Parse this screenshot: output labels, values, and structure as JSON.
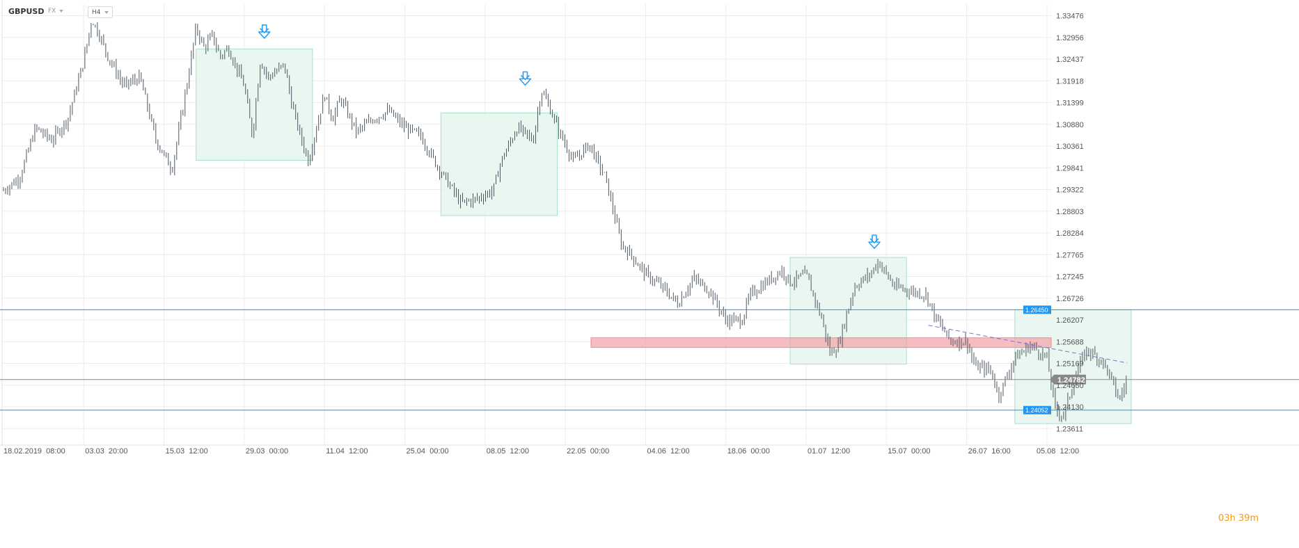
{
  "toolbar": {
    "symbol": "GBPUSD",
    "market": "FX",
    "timeframe": "H4"
  },
  "countdown": "03h 39m",
  "chart_data": {
    "type": "bar",
    "instrument": "GBPUSD",
    "timeframe": "H4",
    "ylim": [
      1.2335,
      1.3375
    ],
    "y_ticks": [
      "1.33476",
      "1.32956",
      "1.32437",
      "1.31918",
      "1.31399",
      "1.30880",
      "1.30361",
      "1.29841",
      "1.29322",
      "1.28803",
      "1.28284",
      "1.27765",
      "1.27245",
      "1.26726",
      "1.26207",
      "1.25688",
      "1.25169",
      "1.24650",
      "1.24130",
      "1.23611"
    ],
    "x_ticks": [
      "18.02.2019  08:00",
      "03.03  20:00",
      "15.03  12:00",
      "29.03  00:00",
      "11.04  12:00",
      "25.04  00:00",
      "08.05  12:00",
      "22.05  00:00",
      "04.06  12:00",
      "18.06  00:00",
      "01.07  12:00",
      "15.07  00:00",
      "26.07  16:00",
      "05.08  12:00"
    ],
    "price_path": [
      [
        0,
        1.293
      ],
      [
        2,
        1.296
      ],
      [
        4,
        1.308
      ],
      [
        6,
        1.305
      ],
      [
        8,
        1.31
      ],
      [
        10,
        1.324
      ],
      [
        11,
        1.334
      ],
      [
        12,
        1.33
      ],
      [
        13,
        1.325
      ],
      [
        15,
        1.318
      ],
      [
        17,
        1.32
      ],
      [
        19,
        1.305
      ],
      [
        21,
        1.298
      ],
      [
        23,
        1.32
      ],
      [
        24,
        1.332
      ],
      [
        25,
        1.327
      ],
      [
        26,
        1.33
      ],
      [
        27,
        1.325
      ],
      [
        28,
        1.327
      ],
      [
        30,
        1.318
      ],
      [
        31,
        1.306
      ],
      [
        32,
        1.324
      ],
      [
        33,
        1.32
      ],
      [
        35,
        1.323
      ],
      [
        36,
        1.313
      ],
      [
        37,
        1.306
      ],
      [
        38,
        1.3
      ],
      [
        40,
        1.316
      ],
      [
        41,
        1.31
      ],
      [
        42,
        1.315
      ],
      [
        44,
        1.307
      ],
      [
        46,
        1.31
      ],
      [
        48,
        1.312
      ],
      [
        50,
        1.308
      ],
      [
        52,
        1.306
      ],
      [
        54,
        1.299
      ],
      [
        55,
        1.296
      ],
      [
        57,
        1.29
      ],
      [
        59,
        1.291
      ],
      [
        61,
        1.293
      ],
      [
        62,
        1.3
      ],
      [
        64,
        1.308
      ],
      [
        66,
        1.305
      ],
      [
        67,
        1.317
      ],
      [
        68,
        1.313
      ],
      [
        69,
        1.308
      ],
      [
        71,
        1.3
      ],
      [
        73,
        1.304
      ],
      [
        75,
        1.296
      ],
      [
        76,
        1.288
      ],
      [
        77,
        1.28
      ],
      [
        78,
        1.278
      ],
      [
        80,
        1.273
      ],
      [
        82,
        1.27
      ],
      [
        84,
        1.266
      ],
      [
        86,
        1.272
      ],
      [
        88,
        1.269
      ],
      [
        90,
        1.262
      ],
      [
        92,
        1.262
      ],
      [
        93,
        1.268
      ],
      [
        95,
        1.271
      ],
      [
        97,
        1.274
      ],
      [
        98,
        1.271
      ],
      [
        100,
        1.273
      ],
      [
        102,
        1.262
      ],
      [
        103,
        1.254
      ],
      [
        104,
        1.256
      ],
      [
        106,
        1.27
      ],
      [
        108,
        1.273
      ],
      [
        109,
        1.276
      ],
      [
        111,
        1.27
      ],
      [
        113,
        1.269
      ],
      [
        115,
        1.268
      ],
      [
        116,
        1.263
      ],
      [
        118,
        1.257
      ],
      [
        120,
        1.257
      ],
      [
        121,
        1.251
      ],
      [
        123,
        1.25
      ],
      [
        124,
        1.244
      ],
      [
        126,
        1.253
      ],
      [
        128,
        1.256
      ],
      [
        130,
        1.253
      ],
      [
        131,
        1.241
      ],
      [
        132,
        1.239
      ],
      [
        134,
        1.251
      ],
      [
        135,
        1.255
      ],
      [
        137,
        1.252
      ],
      [
        138,
        1.248
      ],
      [
        139,
        1.243
      ],
      [
        140,
        1.2478
      ]
    ],
    "levels": [
      {
        "label": "1.26450",
        "price": 1.2645,
        "color": "#2196f3"
      },
      {
        "label": "1.24052",
        "price": 1.24052,
        "color": "#2196f3"
      },
      {
        "label": "1.24782",
        "price": 1.24782,
        "color": "#888888"
      }
    ],
    "zone": {
      "price_low": 1.2555,
      "price_high": 1.2578,
      "color": "#f4a3a8"
    },
    "trendline": {
      "from": [
        120,
        1.2588
      ],
      "to": [
        140,
        1.2518
      ],
      "color": "#7b6fd6"
    },
    "boxes": [
      {
        "x0": 24,
        "x1": 38.5,
        "y_low": 1.3002,
        "y_high": 1.3268
      },
      {
        "x0": 54.5,
        "x1": 69,
        "y_low": 1.287,
        "y_high": 1.3115
      },
      {
        "x0": 98,
        "x1": 112.5,
        "y_low": 1.2515,
        "y_high": 1.277
      },
      {
        "x0": 126,
        "x1": 140.5,
        "y_low": 1.2373,
        "y_high": 1.2645
      }
    ],
    "arrows": [
      {
        "x": 32.5,
        "price": 1.3292
      },
      {
        "x": 65,
        "price": 1.318
      },
      {
        "x": 108.5,
        "price": 1.279
      }
    ],
    "colors": {
      "bars": "#4a5560",
      "grid": "#ececec",
      "box_fill": "#e6f6ef",
      "box_border": "#a8e0c8",
      "arrow": "#2aa0f0"
    }
  }
}
